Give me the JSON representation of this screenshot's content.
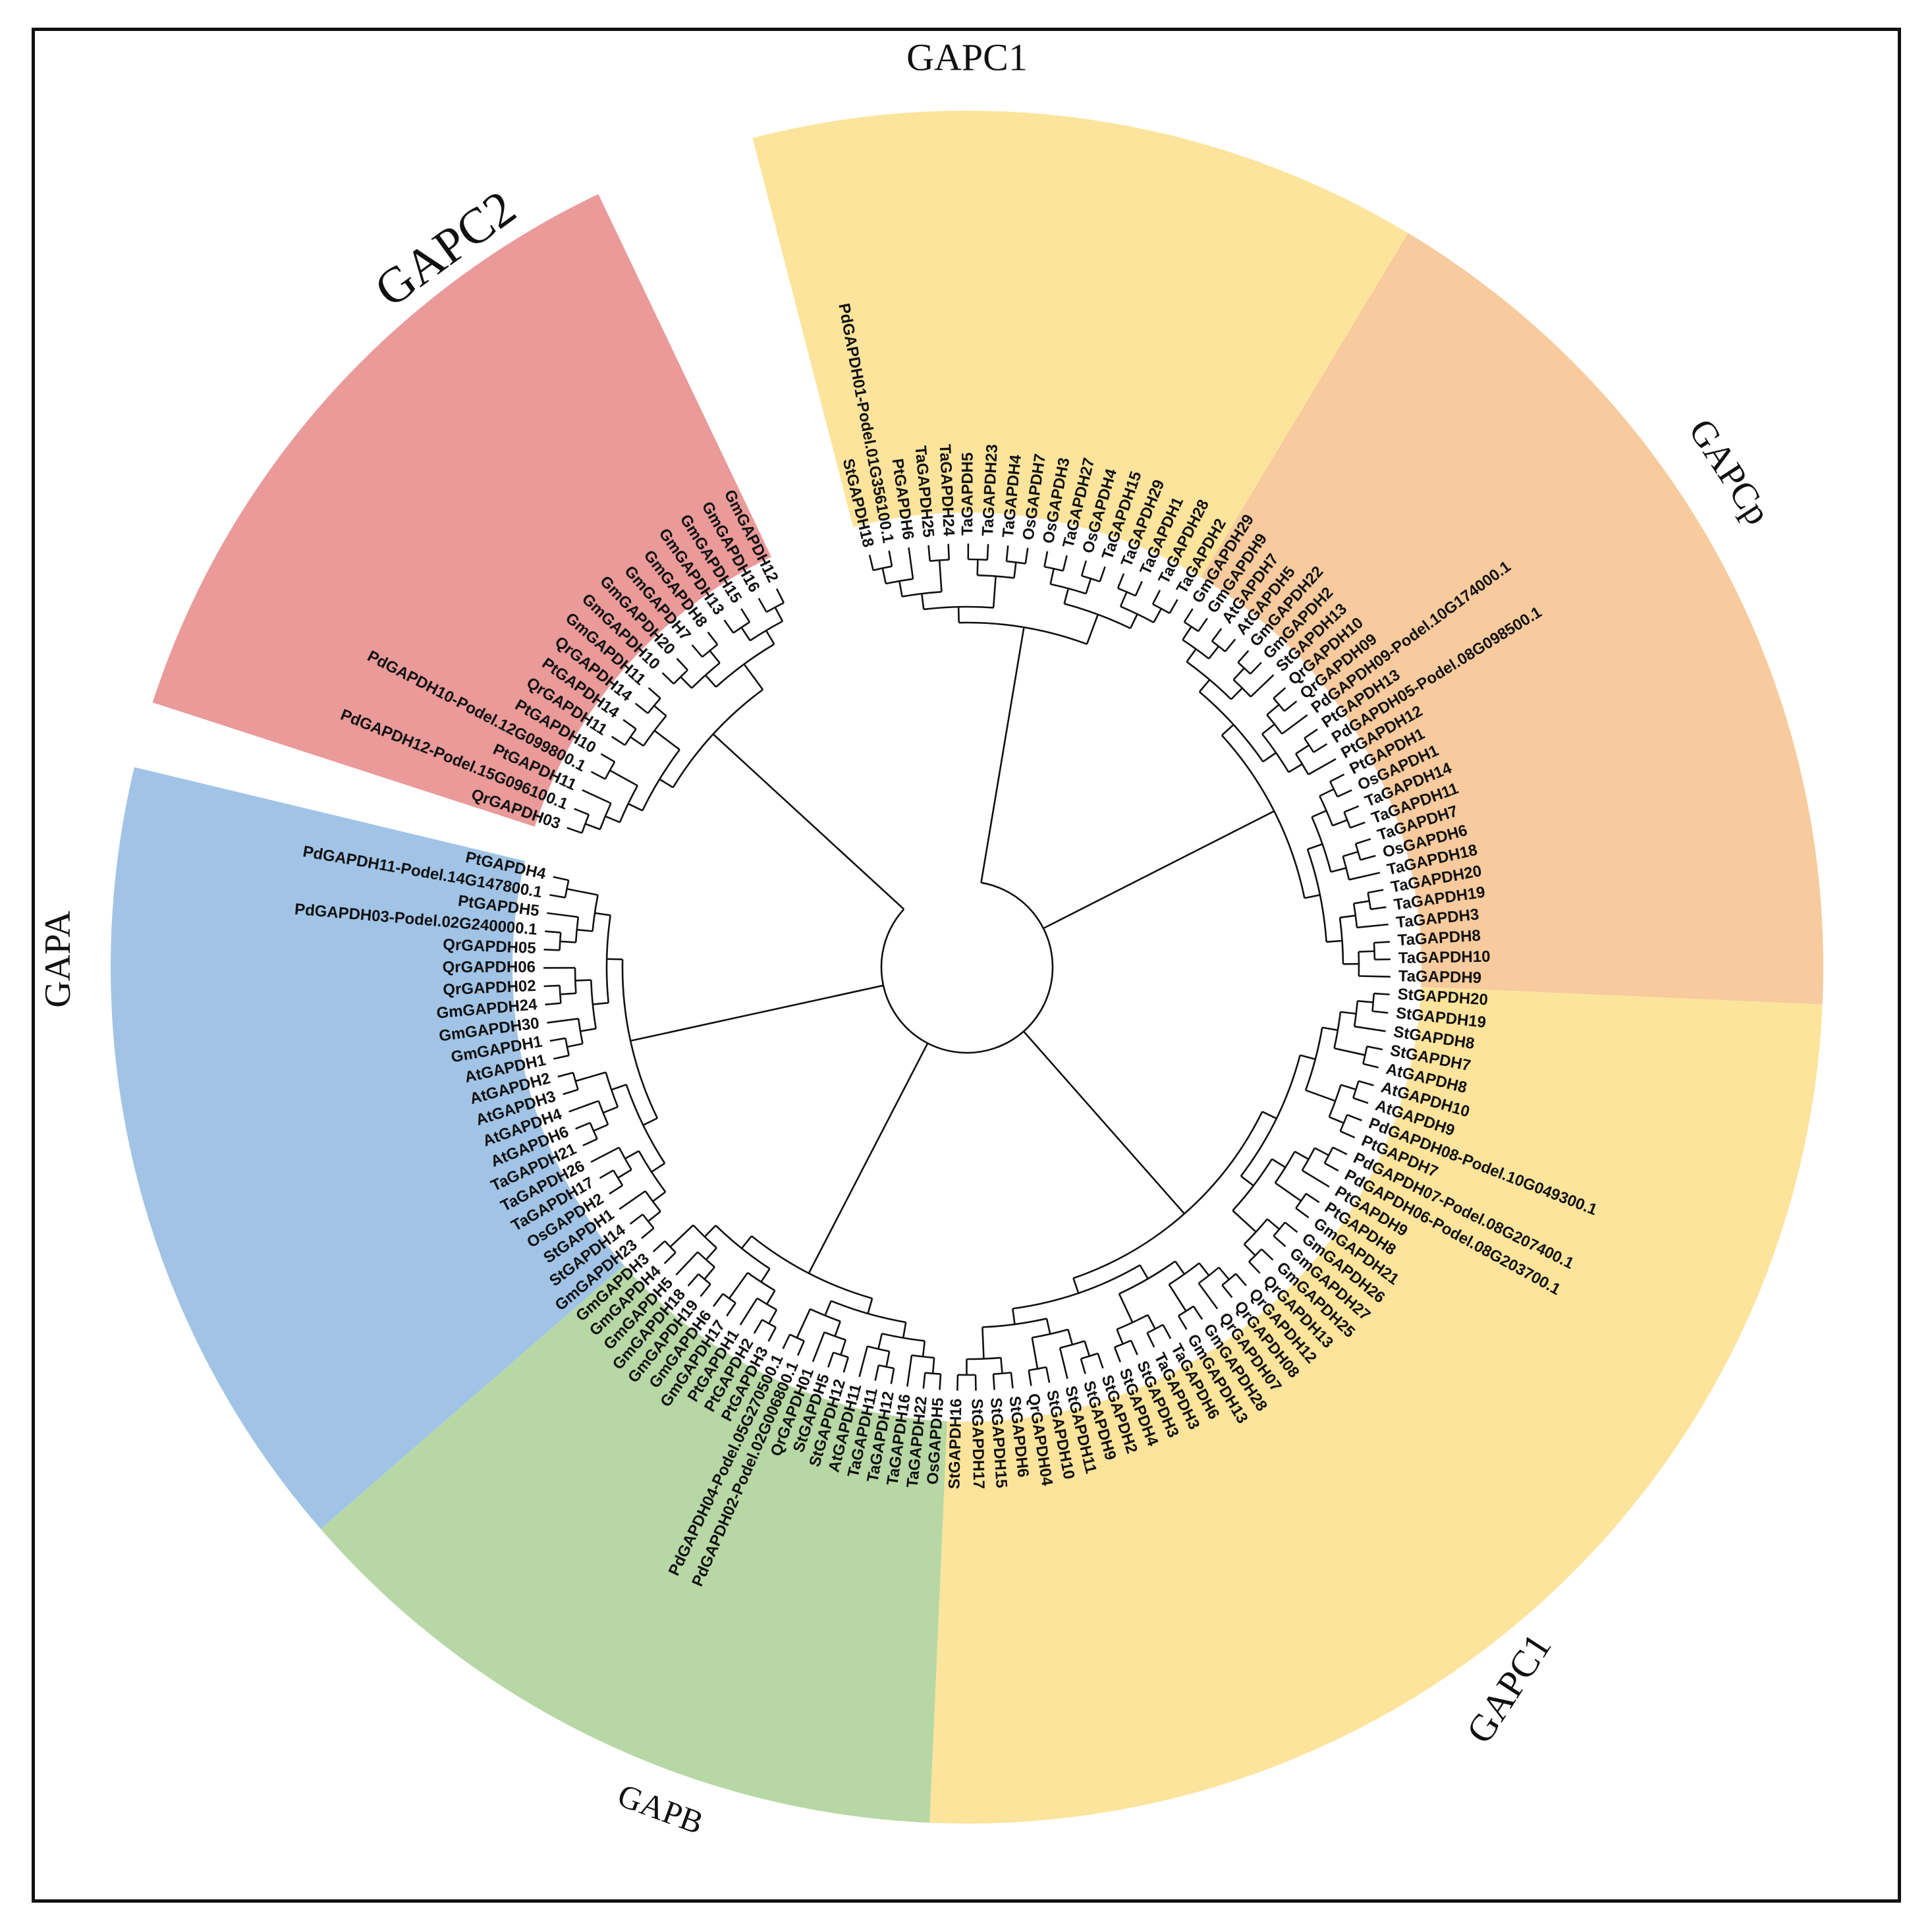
{
  "colors": {
    "GAPC1": "#fde49c",
    "GAPCp": "#f7cb9d",
    "GAPC2": "#e99a99",
    "GAPA": "#a1c4e6",
    "GAPB": "#b7d8a5"
  },
  "clades": [
    {
      "name": "GAPC1",
      "label": "GAPC1",
      "color_key": "GAPC1"
    },
    {
      "name": "GAPCp",
      "label": "GAPCp",
      "color_key": "GAPCp"
    },
    {
      "name": "GAPC2",
      "label": "GAPC2",
      "color_key": "GAPC2"
    },
    {
      "name": "GAPA",
      "label": "GAPA",
      "color_key": "GAPA"
    },
    {
      "name": "GAPB",
      "label": "GAPB",
      "color_key": "GAPB"
    },
    {
      "name": "GAPC1-lower",
      "label": "GAPC1",
      "color_key": "GAPC1"
    }
  ],
  "leaves": {
    "GAPC1_top": [
      "StGAPDH18",
      "PdGAPDH01-Podel.01G356100.1",
      "PtGAPDH6",
      "TaGAPDH25",
      "TaGAPDH24",
      "TaGAPDH5",
      "TaGAPDH23",
      "TaGAPDH4",
      "OsGAPDH7",
      "OsGAPDH3",
      "TaGAPDH27",
      "OsGAPDH4",
      "TaGAPDH15",
      "TaGAPDH29",
      "TaGAPDH1",
      "TaGAPDH28",
      "TaGAPDH2"
    ],
    "GAPCp": [
      "GmGAPDH29",
      "GmGAPDH9",
      "AtGAPDH7",
      "AtGAPDH5",
      "GmGAPDH22",
      "GmGAPDH2",
      "StGAPDH13",
      "QrGAPDH10",
      "QrGAPDH09",
      "PdGAPDH09-Podel.10G174000.1",
      "PtGAPDH13",
      "PdGAPDH05-Podel.08G098500.1",
      "PtGAPDH12",
      "PtGAPDH1",
      "OsGAPDH1",
      "TaGAPDH14",
      "TaGAPDH11",
      "TaGAPDH7",
      "OsGAPDH6",
      "TaGAPDH18",
      "TaGAPDH20",
      "TaGAPDH19",
      "TaGAPDH3",
      "TaGAPDH8",
      "TaGAPDH10",
      "TaGAPDH9"
    ],
    "GAPC1_lower": [
      "StGAPDH20",
      "StGAPDH19",
      "StGAPDH8",
      "StGAPDH7",
      "AtGAPDH8",
      "AtGAPDH10",
      "AtGAPDH9",
      "PdGAPDH08-Podel.10G049300.1",
      "PtGAPDH7",
      "PdGAPDH07-Podel.08G207400.1",
      "PdGAPDH06-Podel.08G203700.1",
      "PtGAPDH9",
      "PtGAPDH8",
      "GmGAPDH21",
      "GmGAPDH26",
      "GmGAPDH27",
      "GmGAPDH25",
      "QrGAPDH13",
      "QrGAPDH12",
      "QrGAPDH08",
      "QrGAPDH07",
      "GmGAPDH28",
      "GmGAPDH13",
      "TaGAPDH6",
      "TaGAPDH3",
      "StGAPDH3",
      "StGAPDH4",
      "StGAPDH2",
      "StGAPDH9",
      "StGAPDH11",
      "StGAPDH10",
      "QrGAPDH04",
      "StGAPDH6",
      "StGAPDH15",
      "StGAPDH17",
      "StGAPDH16"
    ],
    "GAPB": [
      "OsGAPDH5",
      "TaGAPDH22",
      "TaGAPDH16",
      "TaGAPDH12",
      "TaGAPDH11",
      "AtGAPDH11",
      "StGAPDH12",
      "StGAPDH5",
      "QrGAPDH01",
      "PdGAPDH02-Podel.02G006800.1",
      "PdGAPDH04-Podel.05G270500.1",
      "PtGAPDH3",
      "PtGAPDH2",
      "PtGAPDH1",
      "GmGAPDH17",
      "GmGAPDH6",
      "GmGAPDH19",
      "GmGAPDH18",
      "GmGAPDH5",
      "GmGAPDH4",
      "GmGAPDH3"
    ],
    "GAPA": [
      "GmGAPDH23",
      "StGAPDH14",
      "StGAPDH1",
      "OsGAPDH2",
      "TaGAPDH17",
      "TaGAPDH26",
      "TaGAPDH21",
      "AtGAPDH6",
      "AtGAPDH4",
      "AtGAPDH3",
      "AtGAPDH2",
      "AtGAPDH1",
      "GmGAPDH1",
      "GmGAPDH30",
      "GmGAPDH24",
      "QrGAPDH02",
      "QrGAPDH06",
      "QrGAPDH05",
      "PdGAPDH03-Podel.02G240000.1",
      "PtGAPDH5",
      "PdGAPDH11-Podel.14G147800.1",
      "PtGAPDH4"
    ],
    "GAPC2": [
      "QrGAPDH03",
      "PdGAPDH12-Podel.15G096100.1",
      "PtGAPDH11",
      "PdGAPDH10-Podel.12G099800.1",
      "PtGAPDH10",
      "QrGAPDH11",
      "PtGAPDH14",
      "QrGAPDH14",
      "GmGAPDH11",
      "GmGAPDH10",
      "GmGAPDH20",
      "GmGAPDH7",
      "GmGAPDH8",
      "GmGAPDH13",
      "GmGAPDH15",
      "GmGAPDH16",
      "GmGAPDH12"
    ]
  }
}
